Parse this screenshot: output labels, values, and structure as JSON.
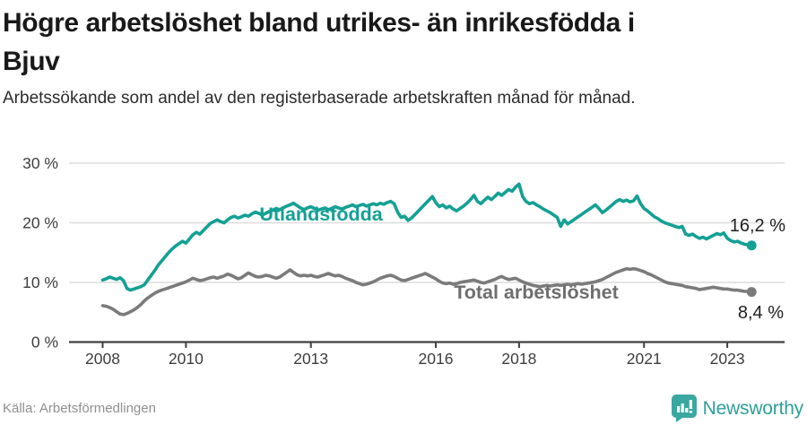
{
  "header": {
    "title_line1": "Högre arbetslöshet bland utrikes- än inrikesfödda i",
    "title_line2": "Bjuv",
    "subtitle": "Arbetssökande som andel av den registerbaserade arbetskraften månad för månad."
  },
  "footer": {
    "source": "Källa: Arbetsförmedlingen",
    "brand_name": "Newsworthy",
    "brand_color": "#2d9f99",
    "logo_icon": "bar-chart-badge-icon",
    "logo_bg_color": "#3aa7a0"
  },
  "chart_data": {
    "type": "line",
    "title": "Högre arbetslöshet bland utrikes- än inrikesfödda i Bjuv",
    "subtitle": "Arbetssökande som andel av den registerbaserade arbetskraften månad för månad.",
    "x_start_year": 2008,
    "points_per_year": 12,
    "x_ticks": [
      2008,
      2010,
      2013,
      2016,
      2018,
      2021,
      2023
    ],
    "x_tick_labels": [
      "2008",
      "2010",
      "2013",
      "2016",
      "2018",
      "2021",
      "2023"
    ],
    "y_ticks": [
      0,
      10,
      20,
      30
    ],
    "y_tick_labels": [
      "0 %",
      "10 %",
      "20 %",
      "30 %"
    ],
    "ylim": [
      0,
      31
    ],
    "grid": true,
    "legend_position": "inline-labels",
    "colors": {
      "gridline": "#dcdcdc",
      "axis": "#414141",
      "tick_text": "#3d3d3d"
    },
    "series": [
      {
        "name": "Utlandsfödda",
        "color": "#14a094",
        "end_label": "16,2 %",
        "end_value": 16.2,
        "values": [
          10.4,
          10.6,
          10.9,
          10.7,
          10.5,
          10.8,
          10.3,
          9.0,
          8.7,
          8.9,
          9.1,
          9.3,
          9.6,
          10.4,
          11.2,
          12.0,
          12.9,
          13.6,
          14.3,
          15.0,
          15.6,
          16.1,
          16.5,
          16.9,
          16.6,
          17.3,
          18.0,
          18.4,
          18.1,
          18.7,
          19.3,
          19.9,
          20.2,
          20.5,
          20.2,
          20.0,
          20.5,
          20.9,
          21.1,
          20.8,
          21.0,
          21.3,
          21.1,
          21.5,
          21.8,
          21.6,
          21.3,
          21.6,
          21.9,
          22.1,
          22.4,
          22.2,
          22.5,
          22.8,
          23.0,
          23.3,
          22.9,
          22.5,
          22.2,
          22.5,
          22.7,
          22.4,
          22.1,
          22.3,
          22.5,
          22.2,
          22.4,
          22.7,
          22.5,
          22.3,
          22.6,
          22.8,
          23.0,
          22.7,
          22.9,
          23.1,
          22.8,
          23.0,
          23.2,
          23.0,
          23.3,
          23.1,
          23.4,
          23.6,
          23.2,
          21.8,
          20.9,
          21.1,
          20.4,
          20.8,
          21.4,
          22.0,
          22.6,
          23.2,
          23.8,
          24.4,
          23.4,
          22.7,
          23.0,
          22.5,
          22.8,
          22.3,
          22.0,
          22.4,
          22.8,
          23.3,
          23.9,
          24.6,
          23.6,
          23.2,
          23.8,
          24.3,
          23.9,
          24.4,
          25.0,
          24.6,
          25.1,
          25.6,
          25.3,
          26.0,
          26.5,
          24.4,
          23.6,
          23.2,
          23.4,
          23.0,
          22.7,
          22.3,
          22.0,
          21.7,
          21.3,
          20.9,
          19.4,
          20.5,
          19.8,
          20.2,
          20.6,
          21.0,
          21.4,
          21.8,
          22.2,
          22.6,
          23.0,
          22.4,
          21.7,
          22.1,
          22.6,
          23.1,
          23.6,
          23.9,
          23.6,
          23.8,
          23.5,
          23.7,
          24.5,
          23.2,
          22.4,
          22.0,
          21.5,
          21.0,
          20.7,
          20.3,
          20.0,
          19.8,
          19.6,
          19.4,
          19.2,
          19.4,
          18.1,
          17.9,
          18.1,
          17.7,
          17.4,
          17.6,
          17.3,
          17.6,
          17.9,
          18.2,
          18.0,
          18.3,
          17.4,
          17.0,
          16.8,
          16.9,
          16.6,
          16.4,
          16.3,
          16.2
        ]
      },
      {
        "name": "Total arbetslöshet",
        "color": "#7b7b7b",
        "end_label": "8,4 %",
        "end_value": 8.4,
        "values": [
          6.1,
          6.0,
          5.8,
          5.5,
          5.1,
          4.7,
          4.6,
          4.8,
          5.1,
          5.4,
          5.8,
          6.3,
          6.9,
          7.4,
          7.8,
          8.2,
          8.5,
          8.7,
          8.9,
          9.1,
          9.3,
          9.5,
          9.7,
          9.9,
          10.1,
          10.4,
          10.7,
          10.5,
          10.3,
          10.4,
          10.6,
          10.8,
          10.9,
          10.7,
          10.9,
          11.1,
          11.4,
          11.2,
          10.9,
          10.6,
          10.8,
          11.2,
          11.6,
          11.3,
          11.0,
          10.9,
          11.0,
          11.2,
          11.1,
          10.9,
          10.7,
          10.9,
          11.3,
          11.7,
          12.1,
          11.7,
          11.3,
          11.1,
          11.2,
          11.1,
          11.2,
          11.0,
          10.9,
          11.1,
          11.3,
          11.5,
          11.3,
          11.1,
          11.2,
          11.0,
          10.7,
          10.5,
          10.3,
          10.0,
          9.8,
          9.6,
          9.7,
          9.9,
          10.1,
          10.4,
          10.7,
          10.9,
          11.1,
          11.2,
          11.0,
          10.7,
          10.4,
          10.3,
          10.5,
          10.7,
          10.9,
          11.1,
          11.3,
          11.5,
          11.2,
          10.9,
          10.6,
          10.2,
          9.9,
          9.8,
          9.9,
          9.7,
          9.8,
          10.0,
          10.1,
          10.2,
          10.3,
          10.4,
          10.2,
          10.0,
          9.9,
          10.1,
          10.3,
          10.5,
          10.8,
          11.0,
          10.7,
          10.5,
          10.6,
          10.7,
          10.4,
          10.1,
          9.9,
          9.7,
          9.5,
          9.4,
          9.3,
          9.4,
          9.5,
          9.4,
          9.5,
          9.6,
          9.5,
          9.6,
          9.7,
          9.6,
          9.7,
          9.8,
          9.7,
          9.8,
          9.9,
          10.0,
          10.1,
          10.3,
          10.5,
          10.8,
          11.1,
          11.4,
          11.7,
          11.9,
          12.1,
          12.3,
          12.2,
          12.3,
          12.2,
          12.0,
          11.8,
          11.5,
          11.3,
          11.0,
          10.7,
          10.4,
          10.1,
          9.9,
          9.8,
          9.7,
          9.6,
          9.5,
          9.3,
          9.2,
          9.1,
          9.0,
          8.8,
          8.9,
          9.0,
          9.1,
          9.2,
          9.1,
          9.0,
          8.9,
          8.9,
          8.8,
          8.7,
          8.7,
          8.6,
          8.5,
          8.5,
          8.4
        ]
      }
    ]
  }
}
